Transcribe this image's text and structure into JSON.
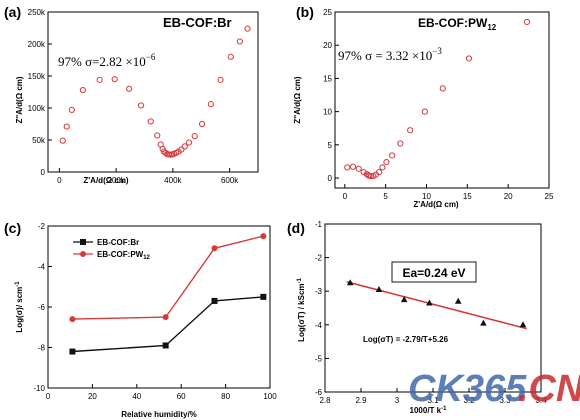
{
  "chart_data": [
    {
      "panel": "(a)",
      "type": "scatter",
      "title": "EB-COF:Br",
      "annotation": "97%  σ=2.82 ×10",
      "annotation_exp": "−6",
      "xlabel": "Z'A/d(Ω cm)",
      "ylabel": "Z''A/d(Ω cm)",
      "xlim": [
        -40000,
        700000
      ],
      "ylim": [
        0,
        250000
      ],
      "xticks": [
        0,
        200000,
        400000,
        600000
      ],
      "xtick_labels": [
        "0",
        "200k",
        "400k",
        "600k"
      ],
      "yticks": [
        0,
        50000,
        100000,
        150000,
        200000,
        250000
      ],
      "ytick_labels": [
        "0",
        "50k",
        "100k",
        "150k",
        "200k",
        "250k"
      ],
      "grid": false,
      "marker": "open circle",
      "color": "#d8383b",
      "x": [
        12000,
        26000,
        44000,
        83000,
        142000,
        195000,
        246000,
        288000,
        322000,
        345000,
        357000,
        364000,
        369000,
        374000,
        380000,
        386000,
        392000,
        398000,
        404000,
        412000,
        420000,
        430000,
        442000,
        457000,
        477000,
        503000,
        534000,
        568000,
        604000,
        636000,
        663000
      ],
      "y": [
        49000,
        71000,
        97000,
        128000,
        144000,
        145000,
        130000,
        104000,
        79000,
        57000,
        43000,
        36000,
        32000,
        30000,
        28000,
        27500,
        27000,
        27500,
        28500,
        30000,
        32000,
        35000,
        40000,
        46000,
        56000,
        75000,
        106000,
        144000,
        180000,
        204000,
        224000
      ]
    },
    {
      "panel": "(b)",
      "type": "scatter",
      "title": "EB-COF:PW",
      "title_sub": "12",
      "annotation": "97%  σ = 3.32 ×10",
      "annotation_exp": "−3",
      "xlabel": "Z'A/d(Ω cm)",
      "ylabel": "Z''A/d(Ω cm)",
      "xlim": [
        -1.2,
        25
      ],
      "ylim": [
        -1.5,
        25
      ],
      "xticks": [
        0,
        5,
        10,
        15,
        20,
        25
      ],
      "yticks": [
        0,
        5,
        10,
        15,
        20,
        25
      ],
      "grid": false,
      "marker": "open circle",
      "color": "#d8383b",
      "x": [
        0.3,
        1.0,
        1.7,
        2.3,
        2.7,
        2.9,
        3.0,
        3.2,
        3.5,
        3.8,
        4.2,
        4.6,
        5.1,
        5.8,
        6.8,
        8.0,
        9.8,
        12.0,
        15.2,
        22.3
      ],
      "y": [
        1.6,
        1.7,
        1.4,
        0.9,
        0.6,
        0.4,
        0.35,
        0.3,
        0.3,
        0.5,
        0.9,
        1.6,
        2.4,
        3.4,
        5.2,
        7.2,
        10.0,
        13.5,
        18.0,
        23.5
      ]
    },
    {
      "panel": "(c)",
      "type": "line",
      "xlabel": "Relative humidity/%",
      "ylabel": "Log(σ)/ scm",
      "ylabel_sup": "-1",
      "xlim": [
        0,
        100
      ],
      "ylim": [
        -10,
        -2
      ],
      "xticks": [
        0,
        20,
        40,
        60,
        80,
        100
      ],
      "yticks": [
        -10,
        -8,
        -6,
        -4,
        -2
      ],
      "grid": false,
      "legend_position": "top-left",
      "series": [
        {
          "name": "EB-COF:Br",
          "name_sub": "",
          "color": "#111111",
          "marker": "filled square",
          "x": [
            11,
            53,
            75,
            97
          ],
          "values": [
            -8.2,
            -7.9,
            -5.7,
            -5.5
          ]
        },
        {
          "name": "EB-COF:PW",
          "name_sub": "12",
          "color": "#d8383b",
          "marker": "filled circle",
          "x": [
            11,
            53,
            75,
            97
          ],
          "values": [
            -6.6,
            -6.5,
            -3.1,
            -2.5
          ]
        }
      ]
    },
    {
      "panel": "(d)",
      "type": "scatter",
      "annotation_box": "Ea=0.24 eV",
      "fit_equation": "Log(σT) = -2.79/T+5.26",
      "xlabel": "1000/T k",
      "xlabel_sup": "-1",
      "ylabel": "Log(σT) / kScm",
      "ylabel_sup": "-1",
      "xlim": [
        2.8,
        3.4
      ],
      "ylim": [
        -6,
        -1
      ],
      "xticks": [
        2.8,
        2.9,
        3.0,
        3.1,
        3.2,
        3.3,
        3.4
      ],
      "yticks": [
        -6,
        -5,
        -4,
        -3,
        -2,
        -1
      ],
      "grid": false,
      "marker": "filled triangle",
      "marker_color": "#111111",
      "fit_color": "#d8383b",
      "x": [
        2.87,
        2.95,
        3.02,
        3.09,
        3.17,
        3.24,
        3.35
      ],
      "y": [
        -2.75,
        -2.95,
        -3.25,
        -3.35,
        -3.3,
        -3.95,
        -4.0
      ],
      "fit_line": {
        "slope": -2.79,
        "intercept": 5.26,
        "x_range": [
          2.86,
          3.36
        ]
      }
    }
  ],
  "watermark": {
    "part1": "CK365",
    "part2": ".CN",
    "color1": "#4169a8",
    "color2": "#c8292e"
  }
}
